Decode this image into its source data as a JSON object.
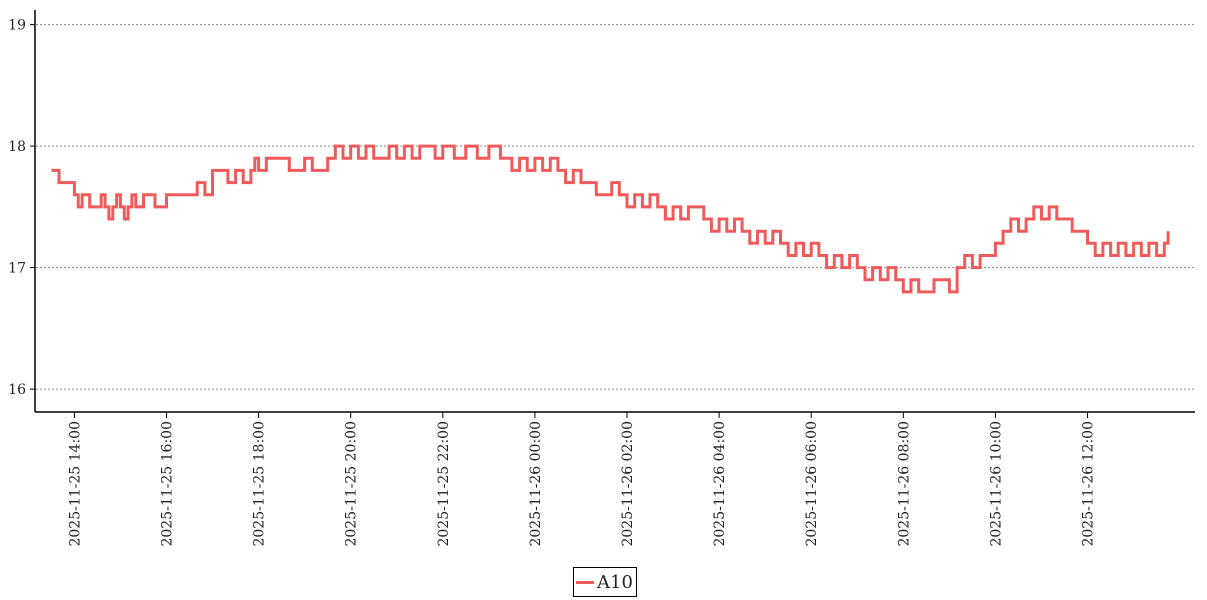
{
  "chart_data": {
    "type": "line",
    "title": "",
    "xlabel": "",
    "ylabel": "",
    "ylim": [
      15.82,
      19.12
    ],
    "xlim": [
      "2025-11-25 13:10",
      "2025-11-26 14:20"
    ],
    "yticks": [
      16,
      17,
      18,
      19
    ],
    "xticks": [
      "2025-11-25 14:00",
      "2025-11-25 16:00",
      "2025-11-25 18:00",
      "2025-11-25 20:00",
      "2025-11-25 22:00",
      "2025-11-26 00:00",
      "2025-11-26 02:00",
      "2025-11-26 04:00",
      "2025-11-26 06:00",
      "2025-11-26 08:00",
      "2025-11-26 10:00",
      "2025-11-26 12:00"
    ],
    "grid": "horizontal dotted",
    "legend_position": "bottom-center",
    "series": [
      {
        "name": "A10",
        "color": "#f05a5a",
        "step": true,
        "x": [
          "2025-11-25 13:30",
          "2025-11-25 13:40",
          "2025-11-25 14:00",
          "2025-11-25 14:05",
          "2025-11-25 14:10",
          "2025-11-25 14:20",
          "2025-11-25 14:35",
          "2025-11-25 14:40",
          "2025-11-25 14:45",
          "2025-11-25 14:50",
          "2025-11-25 14:55",
          "2025-11-25 15:00",
          "2025-11-25 15:05",
          "2025-11-25 15:10",
          "2025-11-25 15:15",
          "2025-11-25 15:20",
          "2025-11-25 15:30",
          "2025-11-25 15:45",
          "2025-11-25 16:00",
          "2025-11-25 16:20",
          "2025-11-25 16:40",
          "2025-11-25 16:50",
          "2025-11-25 17:00",
          "2025-11-25 17:20",
          "2025-11-25 17:30",
          "2025-11-25 17:40",
          "2025-11-25 17:50",
          "2025-11-25 17:55",
          "2025-11-25 18:00",
          "2025-11-25 18:10",
          "2025-11-25 18:40",
          "2025-11-25 19:00",
          "2025-11-25 19:10",
          "2025-11-25 19:30",
          "2025-11-25 19:40",
          "2025-11-25 19:50",
          "2025-11-25 20:00",
          "2025-11-25 20:10",
          "2025-11-25 20:20",
          "2025-11-25 20:30",
          "2025-11-25 20:50",
          "2025-11-25 21:00",
          "2025-11-25 21:10",
          "2025-11-25 21:20",
          "2025-11-25 21:30",
          "2025-11-25 21:50",
          "2025-11-25 22:00",
          "2025-11-25 22:15",
          "2025-11-25 22:30",
          "2025-11-25 22:45",
          "2025-11-25 23:00",
          "2025-11-25 23:15",
          "2025-11-25 23:30",
          "2025-11-25 23:40",
          "2025-11-25 23:50",
          "2025-11-26 00:00",
          "2025-11-26 00:10",
          "2025-11-26 00:20",
          "2025-11-26 00:30",
          "2025-11-26 00:40",
          "2025-11-26 00:50",
          "2025-11-26 01:00",
          "2025-11-26 01:20",
          "2025-11-26 01:40",
          "2025-11-26 01:50",
          "2025-11-26 02:00",
          "2025-11-26 02:10",
          "2025-11-26 02:20",
          "2025-11-26 02:30",
          "2025-11-26 02:40",
          "2025-11-26 02:50",
          "2025-11-26 03:00",
          "2025-11-26 03:10",
          "2025-11-26 03:20",
          "2025-11-26 03:40",
          "2025-11-26 03:50",
          "2025-11-26 04:00",
          "2025-11-26 04:10",
          "2025-11-26 04:20",
          "2025-11-26 04:30",
          "2025-11-26 04:40",
          "2025-11-26 04:50",
          "2025-11-26 05:00",
          "2025-11-26 05:10",
          "2025-11-26 05:20",
          "2025-11-26 05:30",
          "2025-11-26 05:40",
          "2025-11-26 05:50",
          "2025-11-26 06:00",
          "2025-11-26 06:10",
          "2025-11-26 06:20",
          "2025-11-26 06:30",
          "2025-11-26 06:40",
          "2025-11-26 06:50",
          "2025-11-26 07:00",
          "2025-11-26 07:10",
          "2025-11-26 07:20",
          "2025-11-26 07:30",
          "2025-11-26 07:40",
          "2025-11-26 07:50",
          "2025-11-26 08:00",
          "2025-11-26 08:10",
          "2025-11-26 08:20",
          "2025-11-26 08:40",
          "2025-11-26 09:00",
          "2025-11-26 09:10",
          "2025-11-26 09:20",
          "2025-11-26 09:30",
          "2025-11-26 09:40",
          "2025-11-26 10:00",
          "2025-11-26 10:10",
          "2025-11-26 10:20",
          "2025-11-26 10:30",
          "2025-11-26 10:40",
          "2025-11-26 10:50",
          "2025-11-26 11:00",
          "2025-11-26 11:10",
          "2025-11-26 11:20",
          "2025-11-26 11:40",
          "2025-11-26 12:00",
          "2025-11-26 12:10",
          "2025-11-26 12:20",
          "2025-11-26 12:30",
          "2025-11-26 12:40",
          "2025-11-26 12:50",
          "2025-11-26 13:00",
          "2025-11-26 13:10",
          "2025-11-26 13:20",
          "2025-11-26 13:30",
          "2025-11-26 13:40",
          "2025-11-26 13:45"
        ],
        "y": [
          17.8,
          17.7,
          17.6,
          17.5,
          17.6,
          17.5,
          17.6,
          17.5,
          17.4,
          17.5,
          17.6,
          17.5,
          17.4,
          17.5,
          17.6,
          17.5,
          17.6,
          17.5,
          17.6,
          17.6,
          17.7,
          17.6,
          17.8,
          17.7,
          17.8,
          17.7,
          17.8,
          17.9,
          17.8,
          17.9,
          17.8,
          17.9,
          17.8,
          17.9,
          18.0,
          17.9,
          18.0,
          17.9,
          18.0,
          17.9,
          18.0,
          17.9,
          18.0,
          17.9,
          18.0,
          17.9,
          18.0,
          17.9,
          18.0,
          17.9,
          18.0,
          17.9,
          17.8,
          17.9,
          17.8,
          17.9,
          17.8,
          17.9,
          17.8,
          17.7,
          17.8,
          17.7,
          17.6,
          17.7,
          17.6,
          17.5,
          17.6,
          17.5,
          17.6,
          17.5,
          17.4,
          17.5,
          17.4,
          17.5,
          17.4,
          17.3,
          17.4,
          17.3,
          17.4,
          17.3,
          17.2,
          17.3,
          17.2,
          17.3,
          17.2,
          17.1,
          17.2,
          17.1,
          17.2,
          17.1,
          17.0,
          17.1,
          17.0,
          17.1,
          17.0,
          16.9,
          17.0,
          16.9,
          17.0,
          16.9,
          16.8,
          16.9,
          16.8,
          16.9,
          16.8,
          17.0,
          17.1,
          17.0,
          17.1,
          17.2,
          17.3,
          17.4,
          17.3,
          17.4,
          17.5,
          17.4,
          17.5,
          17.4,
          17.3,
          17.2,
          17.1,
          17.2,
          17.1,
          17.2,
          17.1,
          17.2,
          17.1,
          17.2,
          17.1,
          17.2,
          17.3
        ]
      }
    ]
  }
}
